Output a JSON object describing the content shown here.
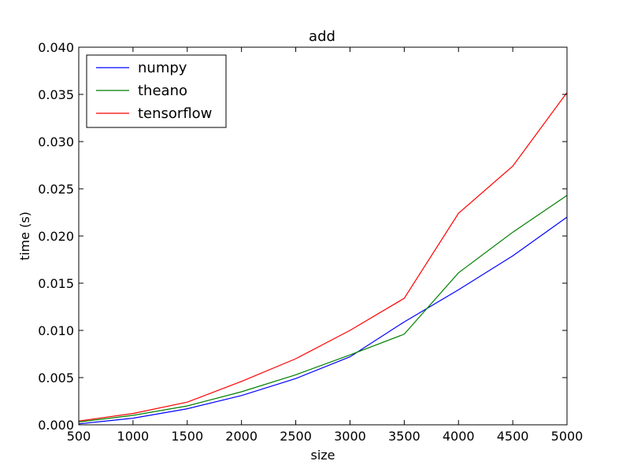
{
  "chart_data": {
    "type": "line",
    "title": "add",
    "xlabel": "size",
    "ylabel": "time (s)",
    "xlim": [
      500,
      5000
    ],
    "ylim": [
      0.0,
      0.04
    ],
    "x_ticks": [
      "500",
      "1000",
      "1500",
      "2000",
      "2500",
      "3000",
      "3500",
      "4000",
      "4500",
      "5000"
    ],
    "y_ticks": [
      "0.000",
      "0.005",
      "0.010",
      "0.015",
      "0.020",
      "0.025",
      "0.030",
      "0.035",
      "0.040"
    ],
    "grid": false,
    "legend_position": "top-left",
    "x": [
      500,
      1000,
      1500,
      2000,
      2500,
      3000,
      3500,
      4000,
      4500,
      5000
    ],
    "series": [
      {
        "name": "numpy",
        "color": "#0000ff",
        "values": [
          0.0001,
          0.0007,
          0.0017,
          0.0031,
          0.0049,
          0.0072,
          0.0109,
          0.0143,
          0.0179,
          0.022
        ]
      },
      {
        "name": "theano",
        "color": "#008000",
        "values": [
          0.0003,
          0.001,
          0.002,
          0.0035,
          0.0053,
          0.0074,
          0.0096,
          0.0161,
          0.0204,
          0.0243
        ]
      },
      {
        "name": "tensorflow",
        "color": "#ff0000",
        "values": [
          0.0004,
          0.0012,
          0.0024,
          0.0046,
          0.007,
          0.01,
          0.0134,
          0.0224,
          0.0274,
          0.0352
        ]
      }
    ]
  }
}
